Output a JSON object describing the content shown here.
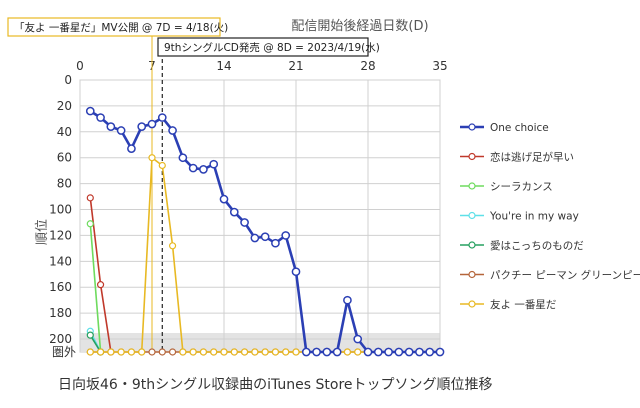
{
  "chart_data": {
    "type": "line",
    "title": "日向坂46・9thシングル収録曲のiTunes Storeトップソング順位推移",
    "xlabel": "配信開始後経過日数(D)",
    "ylabel": "順位",
    "xlim": [
      0,
      35
    ],
    "ylim": [
      0,
      210
    ],
    "y_reversed": true,
    "x_ticks": [
      "0",
      "7",
      "14",
      "21",
      "28",
      "35"
    ],
    "y_ticks": [
      "0",
      "20",
      "40",
      "60",
      "80",
      "100",
      "120",
      "140",
      "160",
      "180",
      "200"
    ],
    "out_label": "圏外",
    "out_value": 210,
    "grid": true,
    "legend_position": "right",
    "annotations": [
      {
        "text": "「友よ 一番星だ」MV公開 @ 7D = 4/18(火)",
        "x": 7
      },
      {
        "text": "9thシングルCD発売 @ 8D = 2023/4/19(水)",
        "x": 8
      }
    ],
    "series": [
      {
        "name": "One choice",
        "color": "#2b3fb4",
        "marker_fill": "#ffffff",
        "bold": true,
        "x": [
          1,
          2,
          3,
          4,
          5,
          6,
          7,
          8,
          9,
          10,
          11,
          12,
          13,
          14,
          15,
          16,
          17,
          18,
          19,
          20,
          21,
          22,
          23,
          24,
          25,
          26,
          27,
          28,
          29,
          30,
          31,
          32,
          33,
          34,
          35
        ],
        "y": [
          24,
          29,
          36,
          39,
          53,
          36,
          34,
          29,
          39,
          60,
          68,
          69,
          65,
          92,
          102,
          110,
          122,
          121,
          126,
          120,
          148,
          210,
          210,
          210,
          210,
          170,
          200,
          210,
          210,
          210,
          210,
          210,
          210,
          210,
          210
        ]
      },
      {
        "name": "恋は逃げ足が早い",
        "color": "#c0392b",
        "marker_fill": "#ffffff",
        "x": [
          1,
          2,
          3
        ],
        "y": [
          91,
          158,
          210
        ]
      },
      {
        "name": "シーラカンス",
        "color": "#6edb5e",
        "marker_fill": "#ffffff",
        "x": [
          1,
          2
        ],
        "y": [
          111,
          210
        ]
      },
      {
        "name": "You're in my way",
        "color": "#5ee0e8",
        "marker_fill": "#ffffff",
        "x": [
          1,
          2
        ],
        "y": [
          194,
          210
        ]
      },
      {
        "name": "愛はこっちのものだ",
        "color": "#27a060",
        "marker_fill": "#ffffff",
        "x": [
          1,
          2
        ],
        "y": [
          197,
          210
        ]
      },
      {
        "name": "パクチー ピーマン グリーンピース",
        "color": "#b5653a",
        "marker_fill": "#ffffff",
        "x": [
          1,
          2,
          3,
          4,
          5,
          6,
          7,
          8,
          9,
          10,
          11,
          12,
          13,
          14,
          15,
          16,
          17,
          18,
          19,
          20,
          21,
          22,
          23,
          24,
          25,
          26,
          27,
          28,
          29,
          30,
          31,
          32,
          33,
          34,
          35
        ],
        "y": [
          210,
          210,
          210,
          210,
          210,
          210,
          210,
          210,
          210,
          210,
          210,
          210,
          210,
          210,
          210,
          210,
          210,
          210,
          210,
          210,
          210,
          210,
          210,
          210,
          210,
          210,
          210,
          210,
          210,
          210,
          210,
          210,
          210,
          210,
          210
        ]
      },
      {
        "name": "友よ 一番星だ",
        "color": "#e8b923",
        "marker_fill": "#ffffff",
        "x": [
          1,
          2,
          3,
          4,
          5,
          6,
          7,
          8,
          9,
          10,
          11,
          12,
          13,
          14,
          15,
          16,
          17,
          18,
          19,
          20,
          21,
          22,
          23,
          24,
          25,
          26,
          27,
          28,
          29,
          30,
          31,
          32,
          33,
          34,
          35
        ],
        "y": [
          210,
          210,
          210,
          210,
          210,
          210,
          60,
          66,
          128,
          210,
          210,
          210,
          210,
          210,
          210,
          210,
          210,
          210,
          210,
          210,
          210,
          210,
          210,
          210,
          210,
          210,
          210,
          210,
          210,
          210,
          210,
          210,
          210,
          210,
          210
        ]
      }
    ]
  }
}
